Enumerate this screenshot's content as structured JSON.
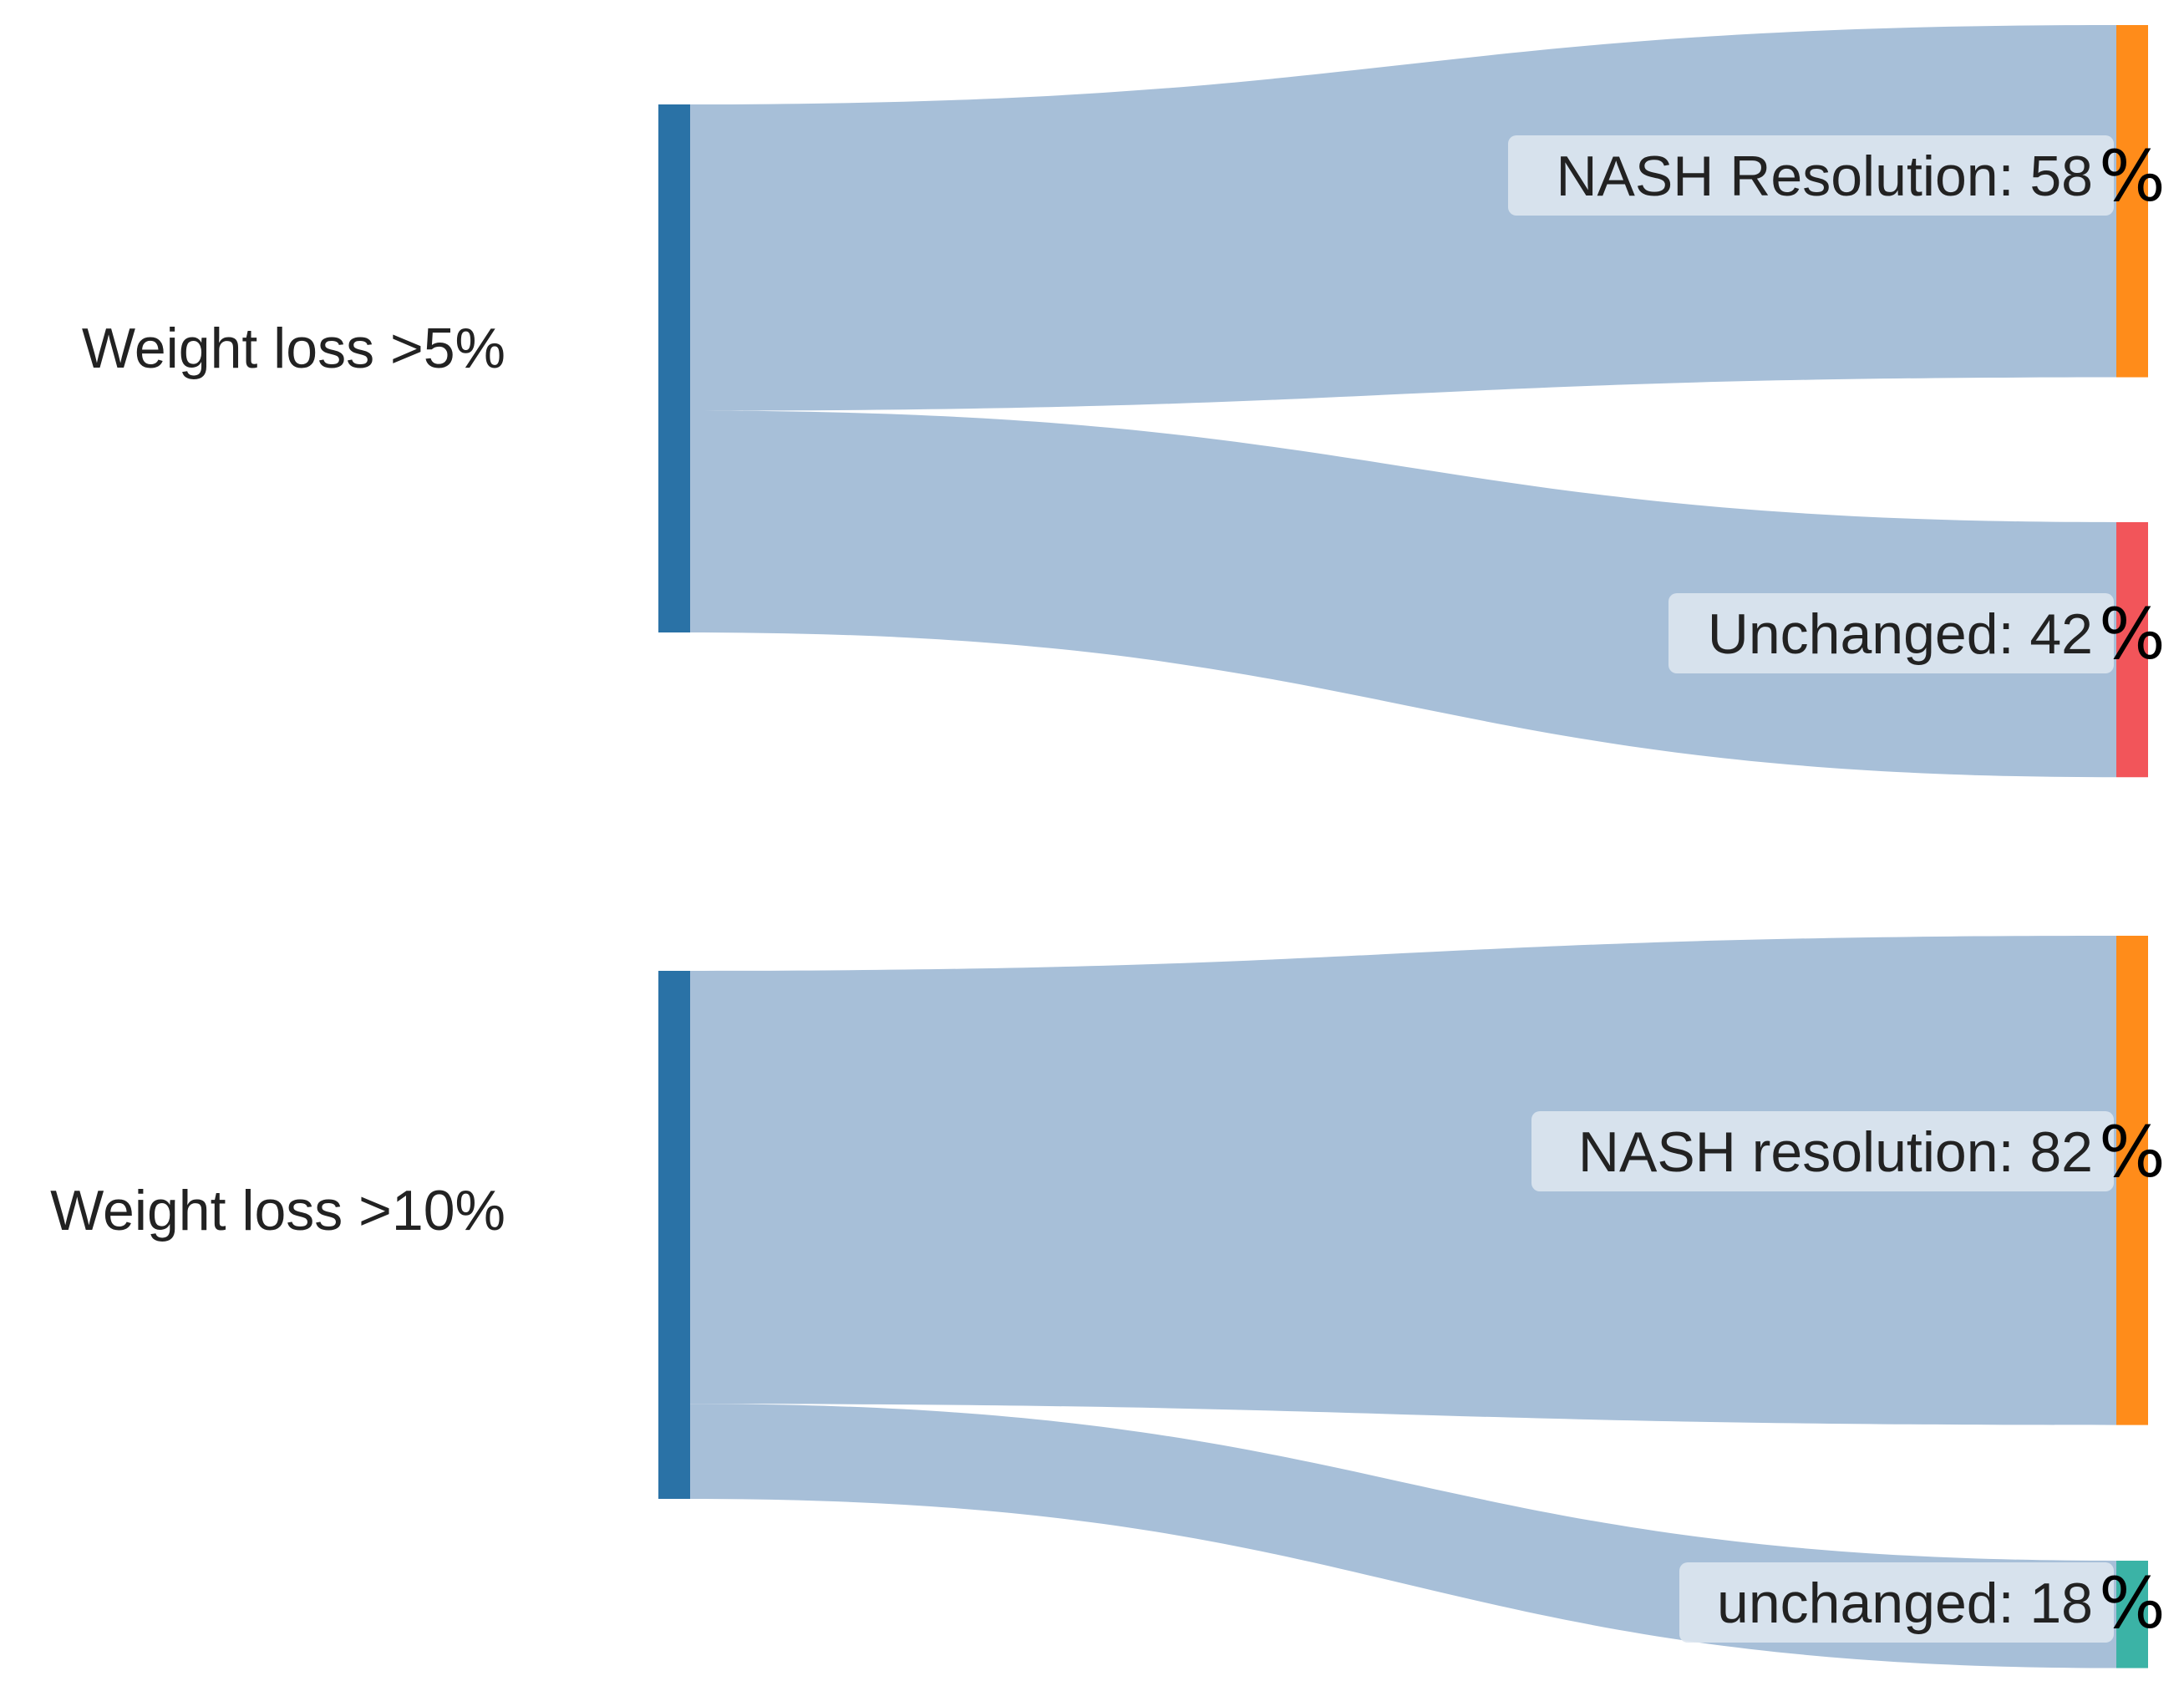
{
  "chart_data": {
    "type": "sankey",
    "colors": {
      "link": "#a7bfd8",
      "source_node": "#2a72a6",
      "label_bg": "#dde6ef"
    },
    "groups": [
      {
        "source": {
          "label": "Weight loss >5%"
        },
        "targets": [
          {
            "label": "NASH Resolution: 58",
            "unit": "%",
            "value": 58,
            "color": "#ff8c1a"
          },
          {
            "label": "Unchanged: 42",
            "unit": "%",
            "value": 42,
            "color": "#f2555a"
          }
        ]
      },
      {
        "source": {
          "label": "Weight loss >10%"
        },
        "targets": [
          {
            "label": "NASH resolution: 82",
            "unit": "%",
            "value": 82,
            "color": "#ff8c1a"
          },
          {
            "label": "unchanged: 18",
            "unit": "%",
            "value": 18,
            "color": "#3bb3a6"
          }
        ]
      }
    ]
  }
}
